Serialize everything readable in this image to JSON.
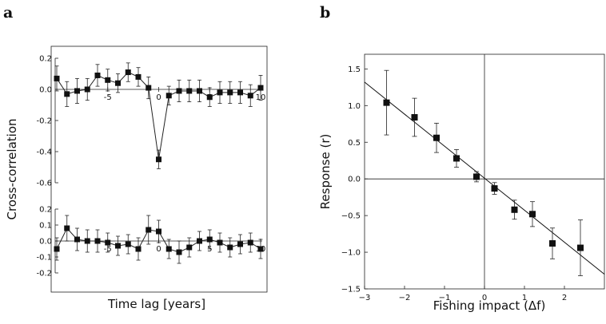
{
  "panel_labels": {
    "a": "a",
    "b": "b"
  },
  "chart_data": [
    {
      "panel": "a",
      "subplot": "top",
      "type": "line",
      "ylabel": "Cross-correlation",
      "xlabel": "Time lag [years]",
      "xlim": [
        -10,
        10
      ],
      "ylim": [
        -0.6,
        0.2
      ],
      "x_ticks": [
        -5,
        0,
        5,
        10
      ],
      "y_ticks": [
        0.2,
        0,
        -0.2,
        -0.4,
        -0.6
      ],
      "x_tick_labels": [
        "-5",
        "0",
        "5",
        "10"
      ],
      "y_tick_labels": [
        "0.2",
        "0.0",
        "-0.2",
        "-0.4",
        "-0.6"
      ],
      "points": [
        {
          "x": -10,
          "y": 0.07,
          "err": 0.08
        },
        {
          "x": -9,
          "y": -0.03,
          "err": 0.08
        },
        {
          "x": -8,
          "y": -0.01,
          "err": 0.08
        },
        {
          "x": -7,
          "y": 0.0,
          "err": 0.07
        },
        {
          "x": -6,
          "y": 0.09,
          "err": 0.07
        },
        {
          "x": -5,
          "y": 0.06,
          "err": 0.07
        },
        {
          "x": -4,
          "y": 0.04,
          "err": 0.06
        },
        {
          "x": -3,
          "y": 0.11,
          "err": 0.06
        },
        {
          "x": -2,
          "y": 0.08,
          "err": 0.06
        },
        {
          "x": -1,
          "y": 0.01,
          "err": 0.07
        },
        {
          "x": 0,
          "y": -0.45,
          "err": 0.06
        },
        {
          "x": 1,
          "y": -0.04,
          "err": 0.06
        },
        {
          "x": 2,
          "y": -0.01,
          "err": 0.07
        },
        {
          "x": 3,
          "y": -0.01,
          "err": 0.07
        },
        {
          "x": 4,
          "y": -0.01,
          "err": 0.07
        },
        {
          "x": 5,
          "y": -0.05,
          "err": 0.06
        },
        {
          "x": 6,
          "y": -0.02,
          "err": 0.07
        },
        {
          "x": 7,
          "y": -0.02,
          "err": 0.07
        },
        {
          "x": 8,
          "y": -0.02,
          "err": 0.07
        },
        {
          "x": 9,
          "y": -0.04,
          "err": 0.07
        },
        {
          "x": 10,
          "y": 0.01,
          "err": 0.08
        }
      ]
    },
    {
      "panel": "a",
      "subplot": "bottom",
      "type": "line",
      "ylabel": "Cross-correlation",
      "xlabel": "Time lag [years]",
      "xlim": [
        -10,
        10
      ],
      "ylim": [
        -0.2,
        0.2
      ],
      "x_ticks": [
        -5,
        0,
        5,
        10
      ],
      "y_ticks": [
        0.2,
        0.1,
        0.0,
        -0.1,
        -0.2
      ],
      "x_tick_labels": [
        "-5",
        "0",
        "5",
        "10"
      ],
      "y_tick_labels": [
        "0.2",
        "0.1",
        "0.0",
        "-0.1",
        "-0.2"
      ],
      "points": [
        {
          "x": -10,
          "y": -0.05,
          "err": 0.07
        },
        {
          "x": -9,
          "y": 0.08,
          "err": 0.08
        },
        {
          "x": -8,
          "y": 0.01,
          "err": 0.07
        },
        {
          "x": -7,
          "y": 0.0,
          "err": 0.07
        },
        {
          "x": -6,
          "y": 0.0,
          "err": 0.07
        },
        {
          "x": -5,
          "y": -0.01,
          "err": 0.06
        },
        {
          "x": -4,
          "y": -0.03,
          "err": 0.06
        },
        {
          "x": -3,
          "y": -0.02,
          "err": 0.06
        },
        {
          "x": -2,
          "y": -0.05,
          "err": 0.07
        },
        {
          "x": -1,
          "y": 0.07,
          "err": 0.09
        },
        {
          "x": 0,
          "y": 0.06,
          "err": 0.07
        },
        {
          "x": 1,
          "y": -0.05,
          "err": 0.06
        },
        {
          "x": 2,
          "y": -0.07,
          "err": 0.07
        },
        {
          "x": 3,
          "y": -0.04,
          "err": 0.06
        },
        {
          "x": 4,
          "y": 0.0,
          "err": 0.06
        },
        {
          "x": 5,
          "y": 0.01,
          "err": 0.06
        },
        {
          "x": 6,
          "y": -0.01,
          "err": 0.06
        },
        {
          "x": 7,
          "y": -0.04,
          "err": 0.06
        },
        {
          "x": 8,
          "y": -0.02,
          "err": 0.06
        },
        {
          "x": 9,
          "y": -0.01,
          "err": 0.06
        },
        {
          "x": 10,
          "y": -0.05,
          "err": 0.06
        }
      ]
    },
    {
      "panel": "b",
      "type": "scatter",
      "xlabel": "Fishing impact (Δf)",
      "ylabel": "Response (r)",
      "xlim": [
        -3,
        3
      ],
      "ylim": [
        -1.5,
        1.7
      ],
      "grid": false,
      "x_ticks": [
        -3,
        -2,
        -1,
        0,
        1,
        2
      ],
      "y_ticks": [
        1.5,
        1.0,
        0.5,
        0.0,
        -0.5,
        -1.0,
        -1.5
      ],
      "x_tick_labels": [
        "−3",
        "−2",
        "−1",
        "0",
        "1",
        "2"
      ],
      "y_tick_labels": [
        "1.5",
        "1.0",
        "0.5",
        "0.0",
        "−0.5",
        "−1.0",
        "−1.5"
      ],
      "fit_line": {
        "x": [
          -3,
          3
        ],
        "y": [
          1.32,
          -1.3
        ]
      },
      "points": [
        {
          "x": -2.45,
          "y": 1.04,
          "err": 0.44
        },
        {
          "x": -1.75,
          "y": 0.84,
          "err": 0.26
        },
        {
          "x": -1.2,
          "y": 0.56,
          "err": 0.2
        },
        {
          "x": -0.7,
          "y": 0.28,
          "err": 0.12
        },
        {
          "x": -0.2,
          "y": 0.03,
          "err": 0.07
        },
        {
          "x": 0.25,
          "y": -0.13,
          "err": 0.08
        },
        {
          "x": 0.75,
          "y": -0.42,
          "err": 0.13
        },
        {
          "x": 1.2,
          "y": -0.48,
          "err": 0.17
        },
        {
          "x": 1.7,
          "y": -0.88,
          "err": 0.21
        },
        {
          "x": 2.4,
          "y": -0.94,
          "err": 0.38
        }
      ]
    }
  ]
}
